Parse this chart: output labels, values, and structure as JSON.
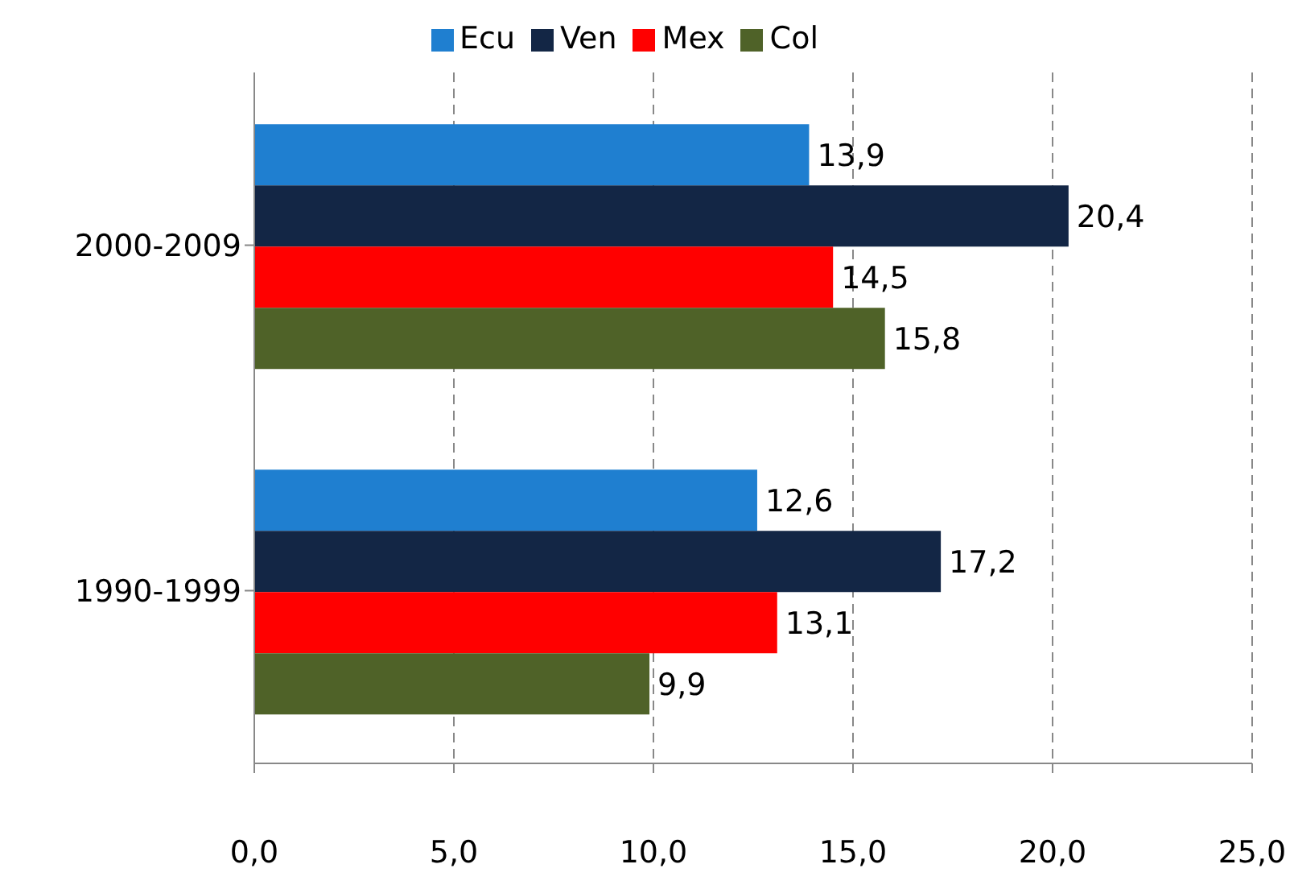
{
  "chart_data": {
    "type": "bar",
    "orientation": "horizontal",
    "categories": [
      "2000-2009",
      "1990-1999"
    ],
    "series": [
      {
        "name": "Ecu",
        "color": "#1f7fd0",
        "values": [
          13.9,
          12.6
        ],
        "value_labels": [
          "13,9",
          "12,6"
        ]
      },
      {
        "name": "Ven",
        "color": "#132645",
        "values": [
          20.4,
          17.2
        ],
        "value_labels": [
          "20,4",
          "17,2"
        ]
      },
      {
        "name": "Mex",
        "color": "#ff0000",
        "values": [
          14.5,
          13.1
        ],
        "value_labels": [
          "14,5",
          "13,1"
        ]
      },
      {
        "name": "Col",
        "color": "#4f6228",
        "values": [
          15.8,
          9.9
        ],
        "value_labels": [
          "15,8",
          "9,9"
        ]
      }
    ],
    "xlim": [
      0,
      25
    ],
    "xticks": [
      {
        "value": 0,
        "label": "0,0"
      },
      {
        "value": 5,
        "label": "5,0"
      },
      {
        "value": 10,
        "label": "10,0"
      },
      {
        "value": 15,
        "label": "15,0"
      },
      {
        "value": 20,
        "label": "20,0"
      },
      {
        "value": 25,
        "label": "25,0"
      }
    ],
    "grid": "x",
    "legend": "top"
  }
}
